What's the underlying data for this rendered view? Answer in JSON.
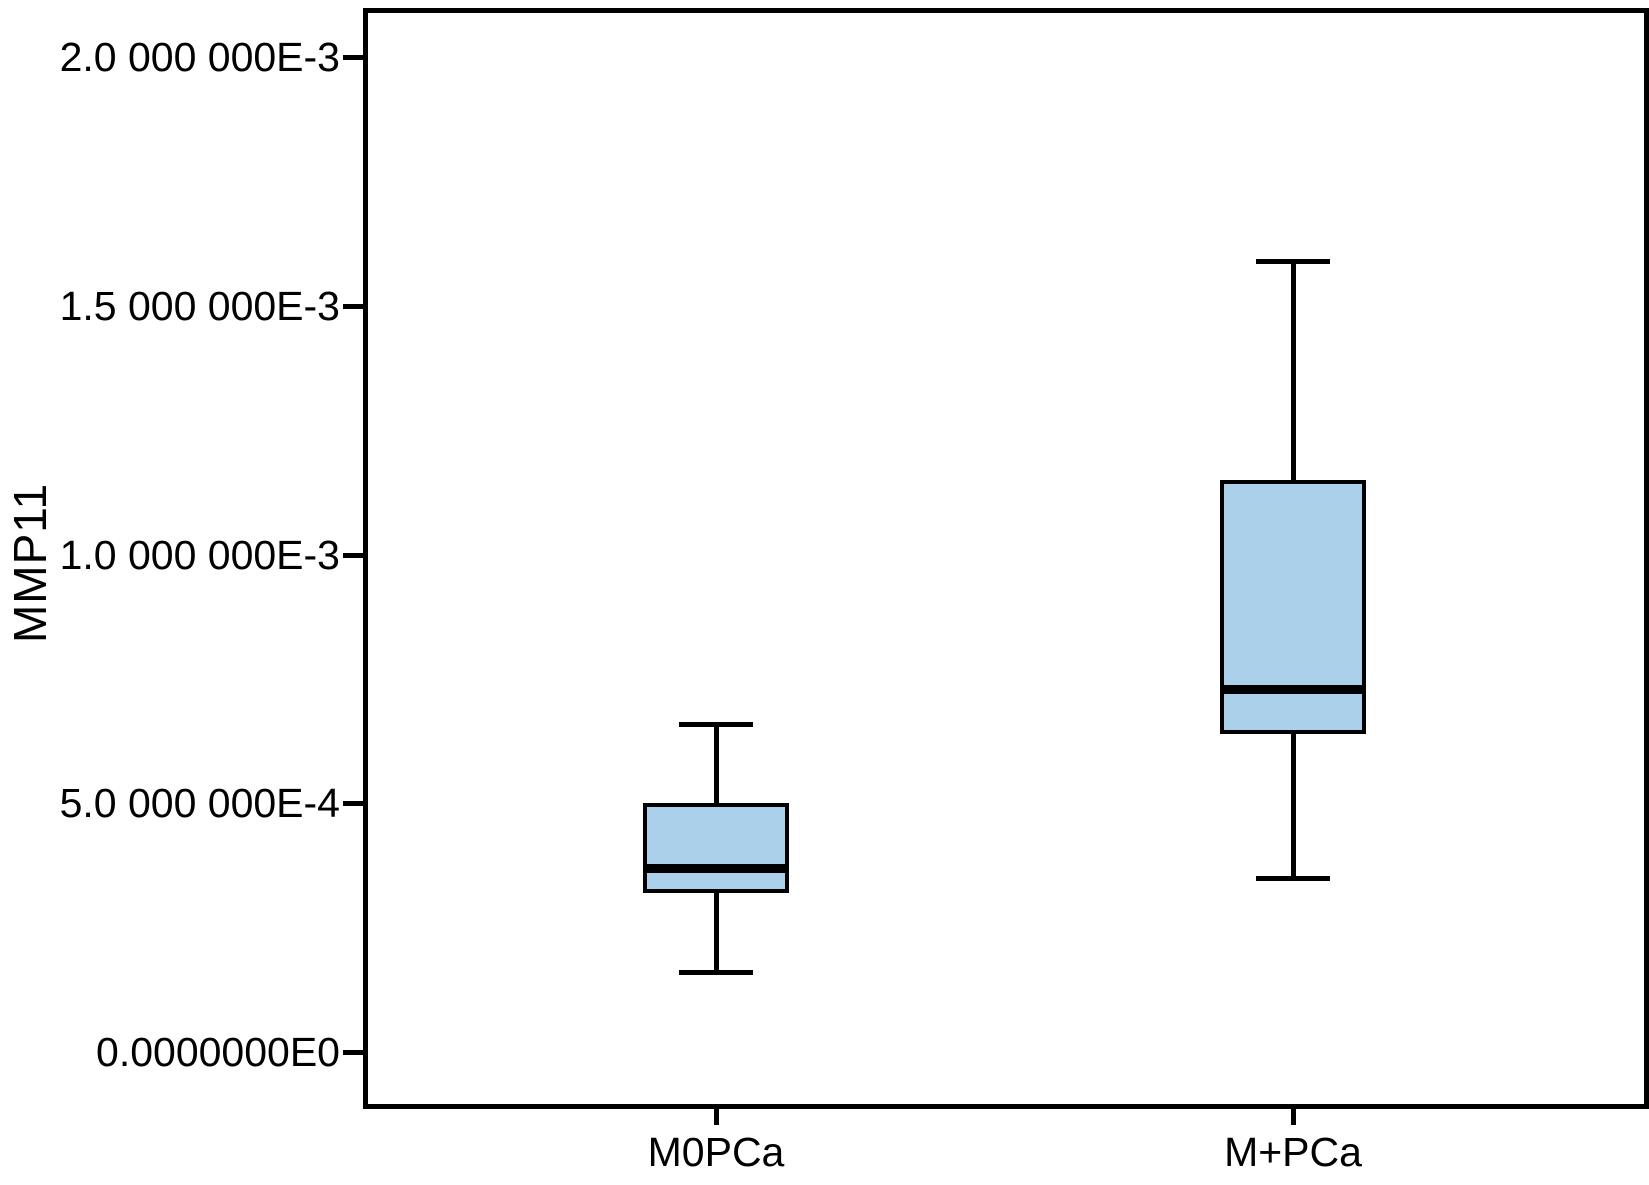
{
  "chart_data": {
    "type": "boxplot",
    "title": "",
    "xlabel": "",
    "ylabel": "MMP11",
    "categories": [
      "M0PCa",
      "M+PCa"
    ],
    "yticks": [
      {
        "value": 0.002,
        "label": "2.0 000 000E-3"
      },
      {
        "value": 0.0015,
        "label": "1.5 000 000E-3"
      },
      {
        "value": 0.001,
        "label": "1.0 000 000E-3"
      },
      {
        "value": 0.0005,
        "label": "5.0 000 000E-4"
      },
      {
        "value": 0.0,
        "label": "0.0000000E0"
      }
    ],
    "ylim": [
      -0.000106,
      0.002096
    ],
    "grid": false,
    "legend": false,
    "series": [
      {
        "category": "M0PCa",
        "whisker_low": 0.00016,
        "q1": 0.00032,
        "median": 0.00037,
        "q3": 0.0005,
        "whisker_high": 0.00066
      },
      {
        "category": "M+PCa",
        "whisker_low": 0.00035,
        "q1": 0.00064,
        "median": 0.00073,
        "q3": 0.00115,
        "whisker_high": 0.00159
      }
    ],
    "colors": {
      "box_fill": "#abd0ea",
      "box_border": "#000000",
      "whisker": "#000000",
      "median": "#000000",
      "axis": "#000000",
      "text": "#000000",
      "background": "#ffffff"
    }
  }
}
